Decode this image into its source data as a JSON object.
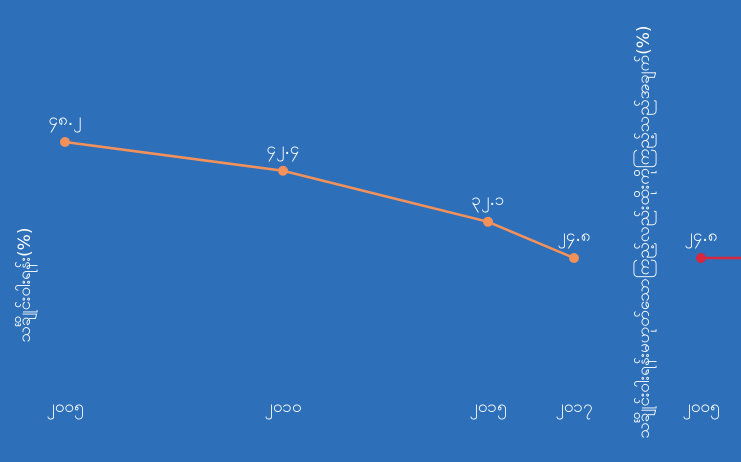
{
  "chart_data": [
    {
      "type": "line",
      "ylabel": "သင်္ချိုင်းဝါးရန်း(%)",
      "color": "#f4915a",
      "x": [
        "၂၀၀၅",
        "၂၀၁၀",
        "၂၀၁၅",
        "၂၀၁၇"
      ],
      "values": [
        48.2,
        42.4,
        32.1,
        24.8
      ],
      "value_labels": [
        "၄၈.၂",
        "၄၂.၄",
        "၃၂.၁",
        "၂၄.၈"
      ]
    },
    {
      "type": "line",
      "ylabel": "သင်္ချိုင်းဝါးရန်းမဟုတ်သောကြည့်လည်းထိုးကိုကြည့်သည်အချက်(%)",
      "color": "#d7263d",
      "x": [
        "၂၀၀၅"
      ],
      "values": [
        24.8
      ],
      "value_labels": [
        "၂၄.၈"
      ]
    }
  ]
}
